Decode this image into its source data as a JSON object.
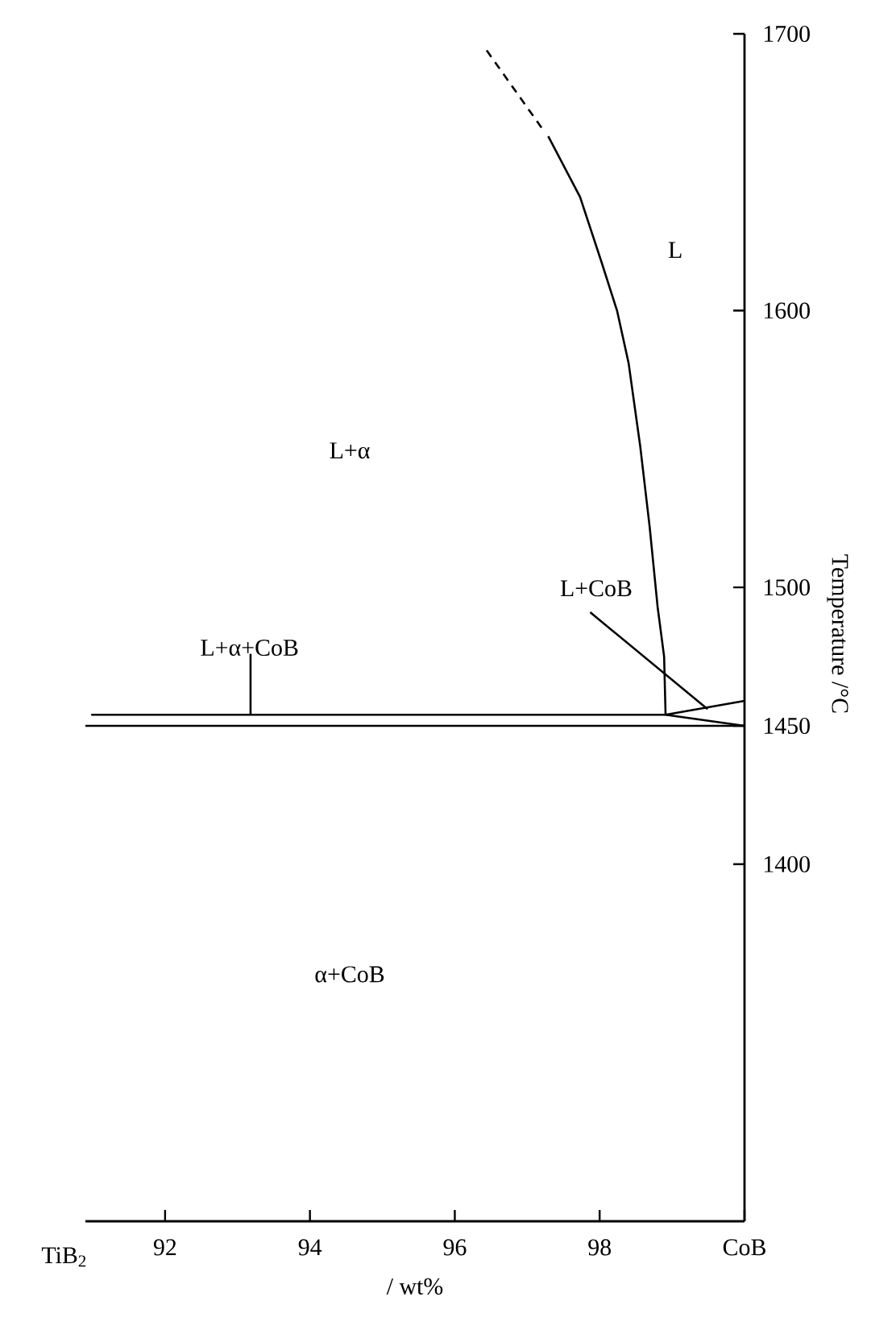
{
  "chart_data": {
    "type": "line",
    "xlabel": "/ wt%",
    "ylabel": "Temperature /°C",
    "xlim": [
      90.9,
      100
    ],
    "ylim": [
      1271,
      1700
    ],
    "xticks": [
      92,
      94,
      96,
      98,
      {
        "value": 100,
        "label": "CoB"
      }
    ],
    "yticks": [
      1400,
      1450,
      1500,
      1600,
      1700
    ],
    "marker": "none",
    "line_style": "solid",
    "series": [
      {
        "color": "#000000",
        "line_style": "dashed",
        "x": [
          96.44,
          97.2
        ],
        "values": [
          1694,
          1666
        ]
      },
      {
        "color": "#000000",
        "x": [
          97.29,
          97.73,
          98.02,
          98.24,
          98.4,
          98.56,
          98.69,
          98.8,
          98.89,
          98.91,
          100
        ],
        "values": [
          1663,
          1641,
          1618,
          1600,
          1581,
          1551,
          1522,
          1493,
          1475,
          1454,
          1450
        ]
      },
      {
        "color": "#000000",
        "x": [
          90.9,
          100
        ],
        "values": [
          1450,
          1450
        ]
      },
      {
        "color": "#000000",
        "x": [
          90.98,
          98.91,
          100
        ],
        "values": [
          1454,
          1454,
          1459
        ]
      },
      {
        "color": "#000000",
        "x": [
          93.18,
          93.18
        ],
        "values": [
          1454,
          1476
        ]
      },
      {
        "color": "#000000",
        "x": [
          97.87,
          99.49
        ],
        "values": [
          1491,
          1456
        ]
      }
    ],
    "annotations": [
      "TiB$_{2}$",
      "L",
      "L+α",
      "L+α+CoB",
      "L+CoB",
      "α+CoB"
    ]
  }
}
